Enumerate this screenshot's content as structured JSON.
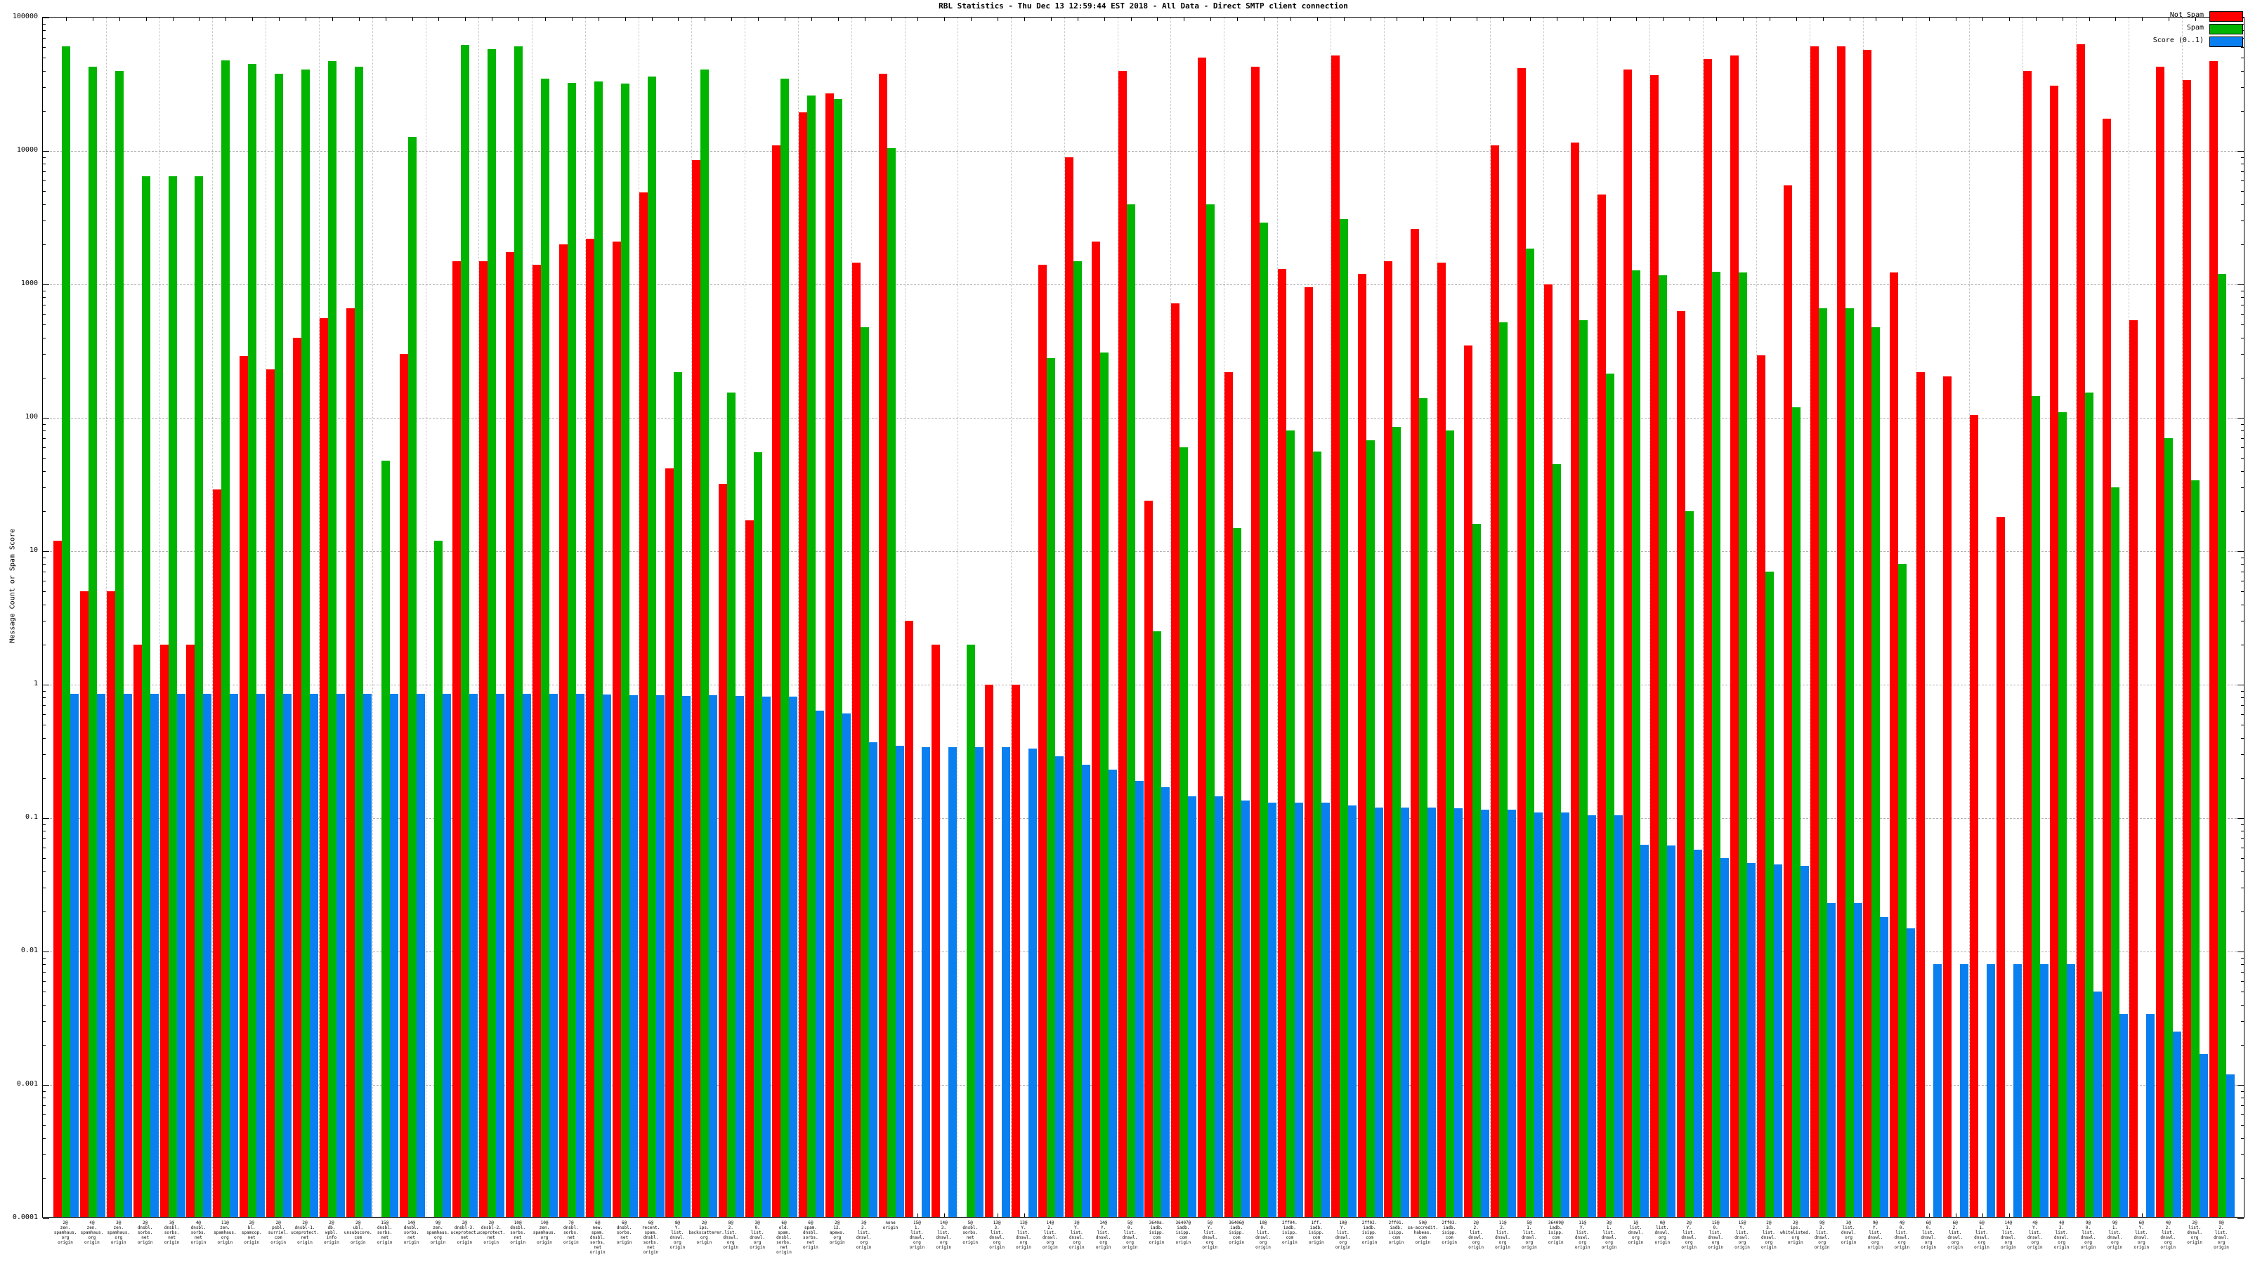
{
  "title": "RBL Statistics - Thu Dec 13 12:59:44 EST 2018 - All Data - Direct SMTP client connection",
  "y_axis": {
    "label": "Message Count or Spam Score",
    "ticks": [
      "100000",
      "10000",
      "1000",
      "100",
      "10",
      "1",
      "0.1",
      "0.01",
      "0.001",
      "0.0001"
    ]
  },
  "legend": [
    {
      "label": "Not Spam",
      "color": "#ff0000"
    },
    {
      "label": "Spam",
      "color": "#00b400"
    },
    {
      "label": "Score (0..1)",
      "color": "#0a80f0"
    }
  ],
  "colors": {
    "not_spam": "#ff0000",
    "spam": "#00b400",
    "score": "#0a80f0"
  },
  "chart_data": {
    "type": "bar",
    "title": "RBL Statistics - Thu Dec 13 12:59:44 EST 2018 - All Data - Direct SMTP client connection",
    "ylabel": "Message Count or Spam Score",
    "yscale": "log",
    "ylim": [
      0.0001,
      100000
    ],
    "grid": true,
    "legend_position": "top-right",
    "series_names": [
      "Not Spam",
      "Spam",
      "Score (0..1)"
    ],
    "groups": [
      {
        "label": "2@ zen. spamhaus. org origin",
        "not_spam": 12,
        "spam": 61000,
        "score": 0.85
      },
      {
        "label": "4@ zen. spamhaus. org origin",
        "not_spam": 5,
        "spam": 43000,
        "score": 0.85
      },
      {
        "label": "3@ zen. spamhaus. org origin",
        "not_spam": 5,
        "spam": 40000,
        "score": 0.85
      },
      {
        "label": "2@ dnsbl. sorbs. net origin",
        "not_spam": 2,
        "spam": 6500,
        "score": 0.85
      },
      {
        "label": "3@ dnsbl. sorbs. net origin",
        "not_spam": 2,
        "spam": 6500,
        "score": 0.85
      },
      {
        "label": "4@ dnsbl. sorbs. net origin",
        "not_spam": 2,
        "spam": 6500,
        "score": 0.85
      },
      {
        "label": "11@ zen. spamhaus. org origin",
        "not_spam": 29,
        "spam": 48000,
        "score": 0.85
      },
      {
        "label": "2@ bl. spamcop. net origin",
        "not_spam": 290,
        "spam": 45000,
        "score": 0.85
      },
      {
        "label": "2@ psbl. surriel. com origin",
        "not_spam": 230,
        "spam": 38000,
        "score": 0.85
      },
      {
        "label": "2@ dnsbl-1. uceprotect. net origin",
        "not_spam": 400,
        "spam": 41000,
        "score": 0.85
      },
      {
        "label": "2@ db. wpbl. info origin",
        "not_spam": 560,
        "spam": 47000,
        "score": 0.85
      },
      {
        "label": "2@ ubl. unsubscore. com origin",
        "not_spam": 660,
        "spam": 43000,
        "score": 0.85
      },
      {
        "label": "15@ dnsbl. sorbs. net origin",
        "not_spam": 0,
        "spam": 48,
        "score": 0.85
      },
      {
        "label": "14@ dnsbl. sorbs. net origin",
        "not_spam": 300,
        "spam": 12800,
        "score": 0.85
      },
      {
        "label": "9@ zen. spamhaus. org origin",
        "not_spam": 0,
        "spam": 12,
        "score": 0.85
      },
      {
        "label": "2@ dnsbl-3. uceprotect. net origin",
        "not_spam": 1500,
        "spam": 62000,
        "score": 0.85
      },
      {
        "label": "2@ dnsbl-2. uceprotect. net origin",
        "not_spam": 1500,
        "spam": 58000,
        "score": 0.85
      },
      {
        "label": "10@ dnsbl. sorbs. net origin",
        "not_spam": 1750,
        "spam": 61000,
        "score": 0.85
      },
      {
        "label": "10@ zen. spamhaus. org origin",
        "not_spam": 1400,
        "spam": 35000,
        "score": 0.85
      },
      {
        "label": "7@ dnsbl. sorbs. net origin",
        "not_spam": 2000,
        "spam": 32500,
        "score": 0.85
      },
      {
        "label": "6@ new. spam. dnsbl. sorbs. net origin",
        "not_spam": 2200,
        "spam": 33000,
        "score": 0.84
      },
      {
        "label": "6@ dnsbl. sorbs. net origin",
        "not_spam": 2100,
        "spam": 32000,
        "score": 0.83
      },
      {
        "label": "6@ recent. spam. dnsbl. sorbs. net origin",
        "not_spam": 4900,
        "spam": 36000,
        "score": 0.83
      },
      {
        "label": "8@ Y. list. dnswl. org origin",
        "not_spam": 42,
        "spam": 220,
        "score": 0.82
      },
      {
        "label": "2@ ips. backscatterer. org origin",
        "not_spam": 8500,
        "spam": 41000,
        "score": 0.83
      },
      {
        "label": "8@ 2. list. dnswl. org origin",
        "not_spam": 32,
        "spam": 155,
        "score": 0.82
      },
      {
        "label": "3@ 0. list. dnswl. org origin",
        "not_spam": 17,
        "spam": 55,
        "score": 0.81
      },
      {
        "label": "6@ old. spam. dnsbl. sorbs. net origin",
        "not_spam": 11000,
        "spam": 35000,
        "score": 0.81
      },
      {
        "label": "6@ spam. dnsbl. sorbs. net origin",
        "not_spam": 19500,
        "spam": 26000,
        "score": 0.64
      },
      {
        "label": "2@ 12. apews. org origin",
        "not_spam": 27000,
        "spam": 24500,
        "score": 0.61
      },
      {
        "label": "3@ 2. list. dnswl. org origin",
        "not_spam": 1450,
        "spam": 480,
        "score": 0.37
      },
      {
        "label": "none origin",
        "not_spam": 38000,
        "spam": 10500,
        "score": 0.35
      },
      {
        "label": "15@ 1. list. dnswl. org origin",
        "not_spam": 3,
        "spam": 0,
        "score": 0.34
      },
      {
        "label": "14@ 3. list. dnswl. org origin",
        "not_spam": 2,
        "spam": 0,
        "score": 0.34
      },
      {
        "label": "5@ dnsbl. sorbs. net origin",
        "not_spam": 0,
        "spam": 2,
        "score": 0.34
      },
      {
        "label": "13@ 3. list. dnswl. org origin",
        "not_spam": 1,
        "spam": 0,
        "score": 0.34
      },
      {
        "label": "13@ Y. list. dnswl. org origin",
        "not_spam": 1,
        "spam": 0,
        "score": 0.33
      },
      {
        "label": "14@ 2. list. dnswl. org origin",
        "not_spam": 1400,
        "spam": 280,
        "score": 0.29
      },
      {
        "label": "3@ Y. list. dnswl. org origin",
        "not_spam": 9000,
        "spam": 1500,
        "score": 0.25
      },
      {
        "label": "14@ Y. list. dnswl. org origin",
        "not_spam": 2100,
        "spam": 310,
        "score": 0.23
      },
      {
        "label": "5@ 0. list. dnswl. org origin",
        "not_spam": 40000,
        "spam": 4000,
        "score": 0.19
      },
      {
        "label": "3640a. iadb. isipp. com origin",
        "not_spam": 24,
        "spam": 2.5,
        "score": 0.17
      },
      {
        "label": "36407@ iadb. isipp. com origin",
        "not_spam": 720,
        "spam": 60,
        "score": 0.145
      },
      {
        "label": "5@ Y. list. dnswl. org origin",
        "not_spam": 50000,
        "spam": 4000,
        "score": 0.145
      },
      {
        "label": "36406@ iadb. isipp. com origin",
        "not_spam": 220,
        "spam": 15,
        "score": 0.135
      },
      {
        "label": "10@ 0. list. dnswl. org origin",
        "not_spam": 43000,
        "spam": 2900,
        "score": 0.13
      },
      {
        "label": "2ff04. iadb. isipp. com origin",
        "not_spam": 1300,
        "spam": 80,
        "score": 0.13
      },
      {
        "label": "1ff. iadb. isipp. com origin",
        "not_spam": 950,
        "spam": 56,
        "score": 0.13
      },
      {
        "label": "10@ Y. list. dnswl. org origin",
        "not_spam": 52000,
        "spam": 3100,
        "score": 0.125
      },
      {
        "label": "2ff02. iadb. isipp. com origin",
        "not_spam": 1200,
        "spam": 68,
        "score": 0.12
      },
      {
        "label": "2ff01. iadb. isipp. com origin",
        "not_spam": 1500,
        "spam": 85,
        "score": 0.12
      },
      {
        "label": "50@ sa-accredit. habeas. com origin",
        "not_spam": 2600,
        "spam": 140,
        "score": 0.12
      },
      {
        "label": "2ff03. iadb. isipp. com origin",
        "not_spam": 1450,
        "spam": 80,
        "score": 0.118
      },
      {
        "label": "2@ 2. list. dnswl. org origin",
        "not_spam": 350,
        "spam": 16,
        "score": 0.115
      },
      {
        "label": "11@ 2. list. dnswl. org origin",
        "not_spam": 11000,
        "spam": 520,
        "score": 0.115
      },
      {
        "label": "5@ 1. list. dnswl. org origin",
        "not_spam": 42000,
        "spam": 1850,
        "score": 0.11
      },
      {
        "label": "36409@ iadb. isipp. com origin",
        "not_spam": 1000,
        "spam": 45,
        "score": 0.11
      },
      {
        "label": "11@ Y. list. dnswl. org origin",
        "not_spam": 11500,
        "spam": 540,
        "score": 0.105
      },
      {
        "label": "3@ 1. list. dnswl. org origin",
        "not_spam": 4700,
        "spam": 215,
        "score": 0.105
      },
      {
        "label": "1@ list. dnswl. org origin",
        "not_spam": 41000,
        "spam": 1270,
        "score": 0.063
      },
      {
        "label": "0@ list. dnswl. org origin",
        "not_spam": 37000,
        "spam": 1170,
        "score": 0.062
      },
      {
        "label": "2@ Y. list. dnswl. org origin",
        "not_spam": 630,
        "spam": 20,
        "score": 0.058
      },
      {
        "label": "15@ 0. list. dnswl. org origin",
        "not_spam": 49000,
        "spam": 1250,
        "score": 0.05
      },
      {
        "label": "15@ Y. list. dnswl. org origin",
        "not_spam": 52000,
        "spam": 1230,
        "score": 0.046
      },
      {
        "label": "2@ 3. list. dnswl. org origin",
        "not_spam": 295,
        "spam": 7,
        "score": 0.045
      },
      {
        "label": "2@ ips. whitelisted. org origin",
        "not_spam": 5500,
        "spam": 120,
        "score": 0.044
      },
      {
        "label": "9@ 3. list. dnswl. org origin",
        "not_spam": 61000,
        "spam": 660,
        "score": 0.023
      },
      {
        "label": "3@ list. dnswl. org origin",
        "not_spam": 61000,
        "spam": 660,
        "score": 0.023
      },
      {
        "label": "9@ Y. list. dnswl. org origin",
        "not_spam": 57000,
        "spam": 480,
        "score": 0.018
      },
      {
        "label": "4@ 0. list. dnswl. org origin",
        "not_spam": 1230,
        "spam": 8,
        "score": 0.015
      },
      {
        "label": "6@ 0. list. dnswl. org origin",
        "not_spam": 220,
        "spam": 0,
        "score": 0.008
      },
      {
        "label": "6@ 2. list. dnswl. org origin",
        "not_spam": 205,
        "spam": 0,
        "score": 0.008
      },
      {
        "label": "6@ 1. list. dnswl. org origin",
        "not_spam": 105,
        "spam": 0,
        "score": 0.008
      },
      {
        "label": "14@ 1. list. dnswl. org origin",
        "not_spam": 18,
        "spam": 0,
        "score": 0.008
      },
      {
        "label": "4@ Y. list. dnswl. org origin",
        "not_spam": 40000,
        "spam": 145,
        "score": 0.008
      },
      {
        "label": "4@ 3. list. dnswl. org origin",
        "not_spam": 31000,
        "spam": 110,
        "score": 0.008
      },
      {
        "label": "9@ 0. list. dnswl. org origin",
        "not_spam": 63000,
        "spam": 155,
        "score": 0.005
      },
      {
        "label": "9@ 1. list. dnswl. org origin",
        "not_spam": 17500,
        "spam": 30,
        "score": 0.0034
      },
      {
        "label": "6@ Y. list. dnswl. org origin",
        "not_spam": 540,
        "spam": 0,
        "score": 0.0034
      },
      {
        "label": "4@ 2. list. dnswl. org origin",
        "not_spam": 43000,
        "spam": 70,
        "score": 0.0025
      },
      {
        "label": "2@ list. dnswl. org origin",
        "not_spam": 34000,
        "spam": 34,
        "score": 0.0017
      },
      {
        "label": "9@ 2. list. dnswl. org origin",
        "not_spam": 47000,
        "spam": 1200,
        "score": 0.0012
      }
    ]
  }
}
